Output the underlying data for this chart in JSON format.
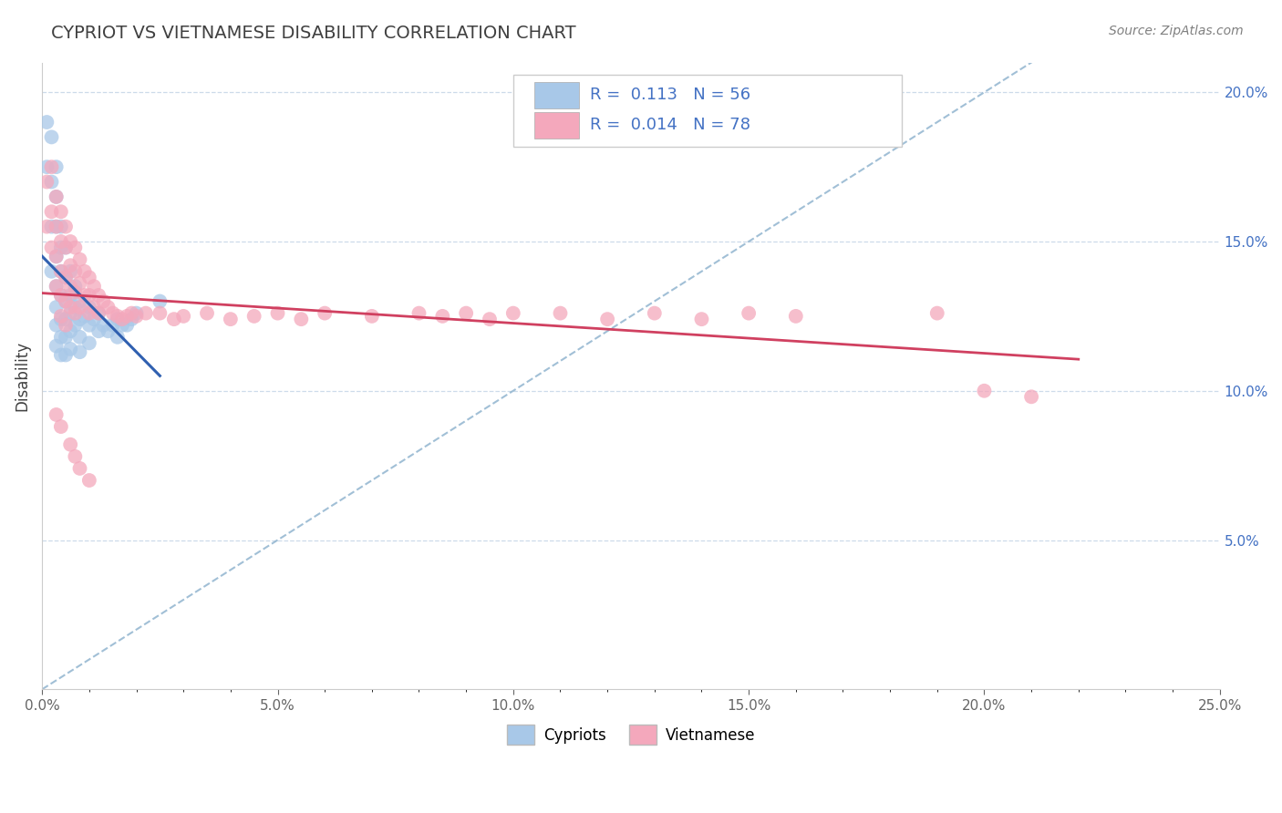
{
  "title": "CYPRIOT VS VIETNAMESE DISABILITY CORRELATION CHART",
  "source": "Source: ZipAtlas.com",
  "ylabel": "Disability",
  "xlim": [
    0.0,
    0.25
  ],
  "ylim": [
    0.0,
    0.21
  ],
  "xtick_labels": [
    "0.0%",
    "",
    "",
    "",
    "",
    "",
    "",
    "",
    "",
    "",
    "5.0%",
    "",
    "",
    "",
    "",
    "",
    "",
    "",
    "",
    "",
    "10.0%",
    "",
    "",
    "",
    "",
    "",
    "",
    "",
    "",
    "",
    "15.0%",
    "",
    "",
    "",
    "",
    "",
    "",
    "",
    "",
    "",
    "20.0%",
    "",
    "",
    "",
    "",
    "",
    "",
    "",
    "",
    "",
    "25.0%"
  ],
  "xtick_vals_major": [
    0.0,
    0.05,
    0.1,
    0.15,
    0.2,
    0.25
  ],
  "xtick_major_labels": [
    "0.0%",
    "5.0%",
    "10.0%",
    "15.0%",
    "20.0%",
    "25.0%"
  ],
  "ytick_vals": [
    0.05,
    0.1,
    0.15,
    0.2
  ],
  "ytick_labels": [
    "5.0%",
    "10.0%",
    "15.0%",
    "20.0%"
  ],
  "cypriot_color": "#a8c8e8",
  "vietnamese_color": "#f4a8bc",
  "cypriot_R": "0.113",
  "cypriot_N": "56",
  "vietnamese_R": "0.014",
  "vietnamese_N": "78",
  "cypriot_trend_color": "#3060b0",
  "vietnamese_trend_color": "#d04060",
  "diagonal_color": "#8ab0cc",
  "title_color": "#404040",
  "source_color": "#808080",
  "label_color": "#4472c4",
  "background_color": "#ffffff",
  "cypriot_x": [
    0.001,
    0.001,
    0.002,
    0.002,
    0.002,
    0.002,
    0.003,
    0.003,
    0.003,
    0.003,
    0.003,
    0.003,
    0.003,
    0.003,
    0.004,
    0.004,
    0.004,
    0.004,
    0.004,
    0.004,
    0.004,
    0.005,
    0.005,
    0.005,
    0.005,
    0.005,
    0.005,
    0.006,
    0.006,
    0.006,
    0.006,
    0.006,
    0.007,
    0.007,
    0.007,
    0.008,
    0.008,
    0.008,
    0.008,
    0.009,
    0.01,
    0.01,
    0.01,
    0.011,
    0.012,
    0.012,
    0.013,
    0.014,
    0.015,
    0.016,
    0.016,
    0.017,
    0.018,
    0.019,
    0.02,
    0.025
  ],
  "cypriot_y": [
    0.19,
    0.175,
    0.185,
    0.17,
    0.155,
    0.14,
    0.175,
    0.165,
    0.155,
    0.145,
    0.135,
    0.128,
    0.122,
    0.115,
    0.155,
    0.148,
    0.14,
    0.132,
    0.124,
    0.118,
    0.112,
    0.148,
    0.138,
    0.13,
    0.124,
    0.118,
    0.112,
    0.14,
    0.132,
    0.126,
    0.12,
    0.114,
    0.135,
    0.128,
    0.122,
    0.13,
    0.124,
    0.118,
    0.113,
    0.125,
    0.128,
    0.122,
    0.116,
    0.124,
    0.126,
    0.12,
    0.122,
    0.12,
    0.122,
    0.124,
    0.118,
    0.122,
    0.122,
    0.124,
    0.126,
    0.13
  ],
  "vietnamese_x": [
    0.001,
    0.001,
    0.002,
    0.002,
    0.002,
    0.003,
    0.003,
    0.003,
    0.003,
    0.004,
    0.004,
    0.004,
    0.004,
    0.004,
    0.005,
    0.005,
    0.005,
    0.005,
    0.005,
    0.006,
    0.006,
    0.006,
    0.006,
    0.007,
    0.007,
    0.007,
    0.007,
    0.008,
    0.008,
    0.008,
    0.009,
    0.009,
    0.01,
    0.01,
    0.01,
    0.011,
    0.011,
    0.012,
    0.012,
    0.013,
    0.014,
    0.015,
    0.016,
    0.017,
    0.018,
    0.019,
    0.02,
    0.022,
    0.025,
    0.028,
    0.03,
    0.035,
    0.04,
    0.045,
    0.05,
    0.055,
    0.06,
    0.07,
    0.08,
    0.085,
    0.09,
    0.095,
    0.1,
    0.11,
    0.12,
    0.13,
    0.14,
    0.15,
    0.16,
    0.19,
    0.2,
    0.21,
    0.003,
    0.004,
    0.006,
    0.007,
    0.008,
    0.01
  ],
  "vietnamese_y": [
    0.17,
    0.155,
    0.175,
    0.16,
    0.148,
    0.165,
    0.155,
    0.145,
    0.135,
    0.16,
    0.15,
    0.14,
    0.132,
    0.125,
    0.155,
    0.148,
    0.138,
    0.13,
    0.122,
    0.15,
    0.142,
    0.135,
    0.128,
    0.148,
    0.14,
    0.133,
    0.126,
    0.144,
    0.136,
    0.128,
    0.14,
    0.132,
    0.138,
    0.132,
    0.126,
    0.135,
    0.128,
    0.132,
    0.126,
    0.13,
    0.128,
    0.126,
    0.125,
    0.124,
    0.125,
    0.126,
    0.125,
    0.126,
    0.126,
    0.124,
    0.125,
    0.126,
    0.124,
    0.125,
    0.126,
    0.124,
    0.126,
    0.125,
    0.126,
    0.125,
    0.126,
    0.124,
    0.126,
    0.126,
    0.124,
    0.126,
    0.124,
    0.126,
    0.125,
    0.126,
    0.1,
    0.098,
    0.092,
    0.088,
    0.082,
    0.078,
    0.074,
    0.07
  ]
}
